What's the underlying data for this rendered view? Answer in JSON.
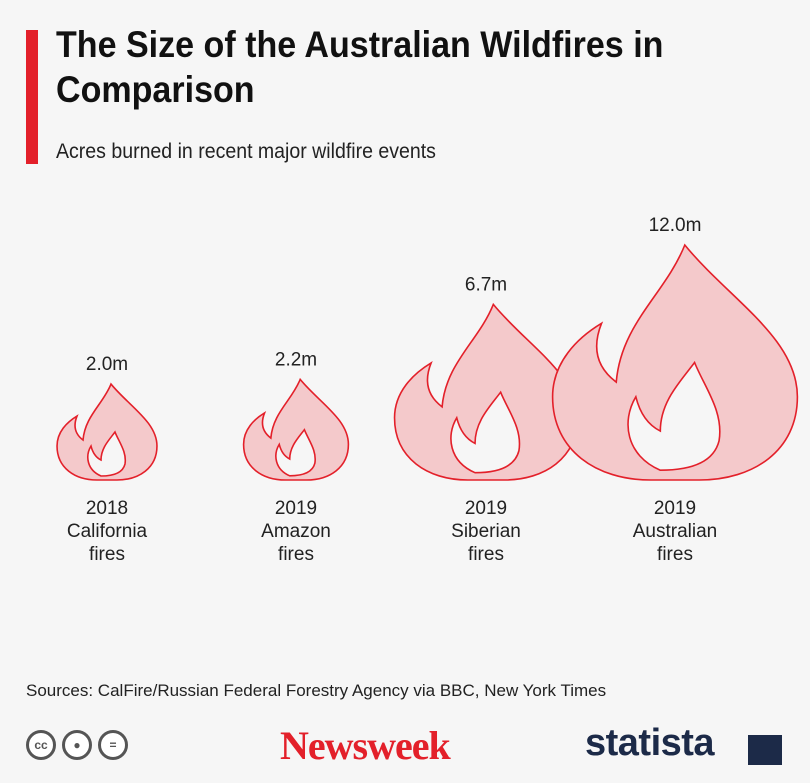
{
  "header": {
    "title": "The Size of the Australian Wildfires in Comparison",
    "subtitle": "Acres burned in recent major wildfire events"
  },
  "chart_data": {
    "type": "bar",
    "title": "The Size of the Australian Wildfires in Comparison",
    "subtitle": "Acres burned in recent major wildfire events",
    "unit": "acres",
    "categories": [
      "2018 California fires",
      "2019 Amazon fires",
      "2019 Siberian fires",
      "2019 Australian fires"
    ],
    "category_lines": [
      [
        "2018",
        "California",
        "fires"
      ],
      [
        "2019",
        "Amazon",
        "fires"
      ],
      [
        "2019",
        "Siberian",
        "fires"
      ],
      [
        "2019",
        "Australian",
        "fires"
      ]
    ],
    "values": [
      2.0,
      2.2,
      6.7,
      12.0
    ],
    "value_labels": [
      "2.0m",
      "2.2m",
      "6.7m",
      "12.0m"
    ],
    "colors": {
      "fill": "#f4c9cb",
      "stroke": "#e3202a"
    }
  },
  "footer": {
    "sources": "Sources: CalFire/Russian Federal Forestry Agency via BBC, New York Times",
    "cc_icons": [
      "cc-icon",
      "by-person-icon",
      "nd-equal-icon"
    ],
    "brand_left": "Newsweek",
    "brand_right": "statista"
  }
}
